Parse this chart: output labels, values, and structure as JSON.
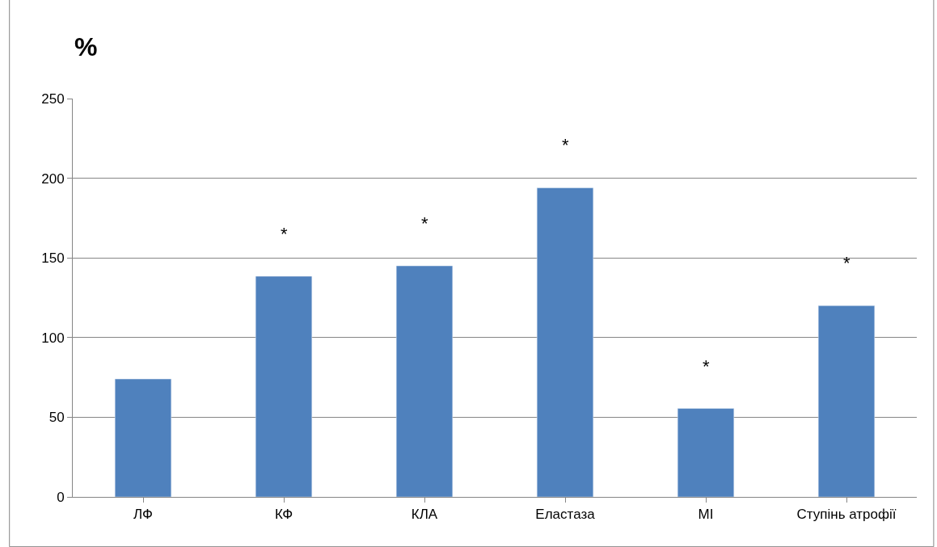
{
  "chart_data": {
    "type": "bar",
    "ylabel": "%",
    "categories": [
      "ЛФ",
      "КФ",
      "КЛА",
      "Еластаза",
      "МІ",
      "Ступінь атрофії"
    ],
    "values": [
      74,
      138.5,
      145,
      194,
      55.5,
      120
    ],
    "color": "#4f81bd",
    "ylim": [
      0,
      250
    ],
    "yticks": [
      0,
      50,
      100,
      150,
      200,
      250
    ],
    "grid": "y",
    "annotations": [
      {
        "text": "*",
        "x": "КФ",
        "y": 138.5
      },
      {
        "text": "*",
        "x": "КЛА",
        "y": 145
      },
      {
        "text": "*",
        "x": "Еластаза",
        "y": 194
      },
      {
        "text": "*",
        "x": "МІ",
        "y": 55.5
      },
      {
        "text": "*",
        "x": "Ступінь атрофії",
        "y": 120
      }
    ]
  }
}
